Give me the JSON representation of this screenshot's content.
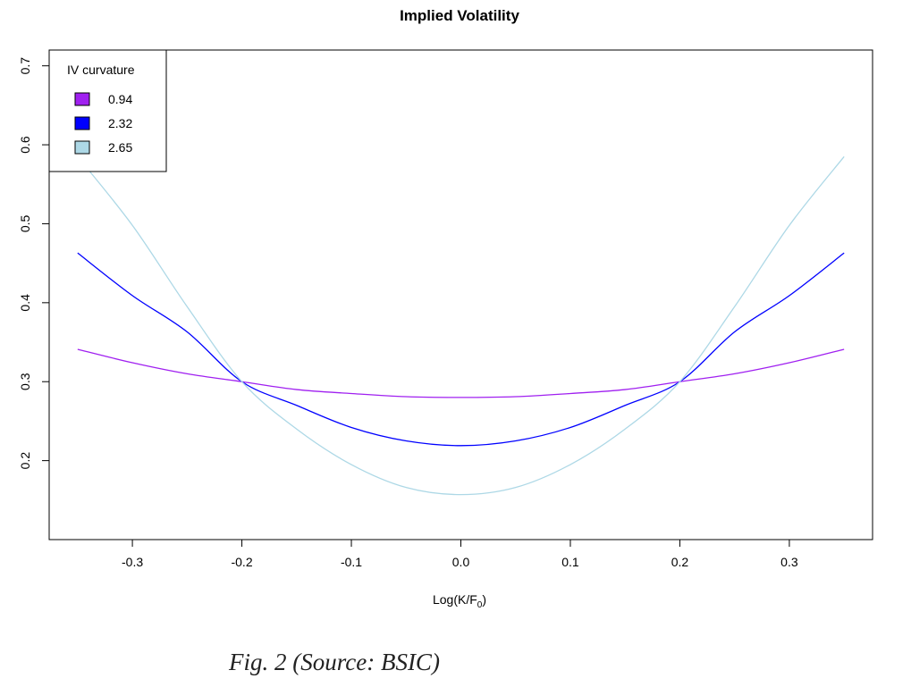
{
  "chart_data": {
    "type": "line",
    "title": "Implied Volatility",
    "xlabel": "Log(K/F",
    "xlabel_sub": "0",
    "xlabel_close": ")",
    "ylabel": "",
    "xlim": [
      -0.376,
      0.376
    ],
    "ylim": [
      0.1,
      0.72
    ],
    "x_ticks": [
      -0.3,
      -0.2,
      -0.1,
      0.0,
      0.1,
      0.2,
      0.3
    ],
    "x_tick_labels": [
      "-0.3",
      "-0.2",
      "-0.1",
      "0.0",
      "0.1",
      "0.2",
      "0.3"
    ],
    "y_ticks": [
      0.2,
      0.3,
      0.4,
      0.5,
      0.6,
      0.7
    ],
    "y_tick_labels": [
      "0.2",
      "0.3",
      "0.4",
      "0.5",
      "0.6",
      "0.7"
    ],
    "grid": false,
    "legend": {
      "title": "IV curvature",
      "placement": "top-left"
    },
    "series": [
      {
        "name": "0.94",
        "color": "#a020f0",
        "x": [
          -0.35,
          -0.3,
          -0.25,
          -0.2,
          -0.15,
          -0.1,
          -0.05,
          0.0,
          0.05,
          0.1,
          0.15,
          0.2,
          0.25,
          0.3,
          0.35
        ],
        "y": [
          0.341,
          0.324,
          0.31,
          0.3,
          0.29,
          0.285,
          0.281,
          0.28,
          0.281,
          0.285,
          0.29,
          0.3,
          0.31,
          0.324,
          0.341
        ]
      },
      {
        "name": "2.32",
        "color": "#0000ff",
        "x": [
          -0.35,
          -0.3,
          -0.25,
          -0.2,
          -0.15,
          -0.1,
          -0.05,
          0.0,
          0.05,
          0.1,
          0.15,
          0.2,
          0.25,
          0.3,
          0.35
        ],
        "y": [
          0.463,
          0.409,
          0.363,
          0.3,
          0.27,
          0.242,
          0.225,
          0.219,
          0.225,
          0.242,
          0.27,
          0.3,
          0.363,
          0.409,
          0.463
        ]
      },
      {
        "name": "2.65",
        "color": "#add8e6",
        "x": [
          -0.35,
          -0.3,
          -0.25,
          -0.2,
          -0.15,
          -0.1,
          -0.05,
          0.0,
          0.05,
          0.1,
          0.15,
          0.2,
          0.25,
          0.3,
          0.35
        ],
        "y": [
          0.585,
          0.498,
          0.395,
          0.3,
          0.24,
          0.195,
          0.166,
          0.157,
          0.166,
          0.195,
          0.24,
          0.3,
          0.395,
          0.498,
          0.585
        ]
      }
    ]
  },
  "caption": "Fig. 2 (Source: BSIC)"
}
